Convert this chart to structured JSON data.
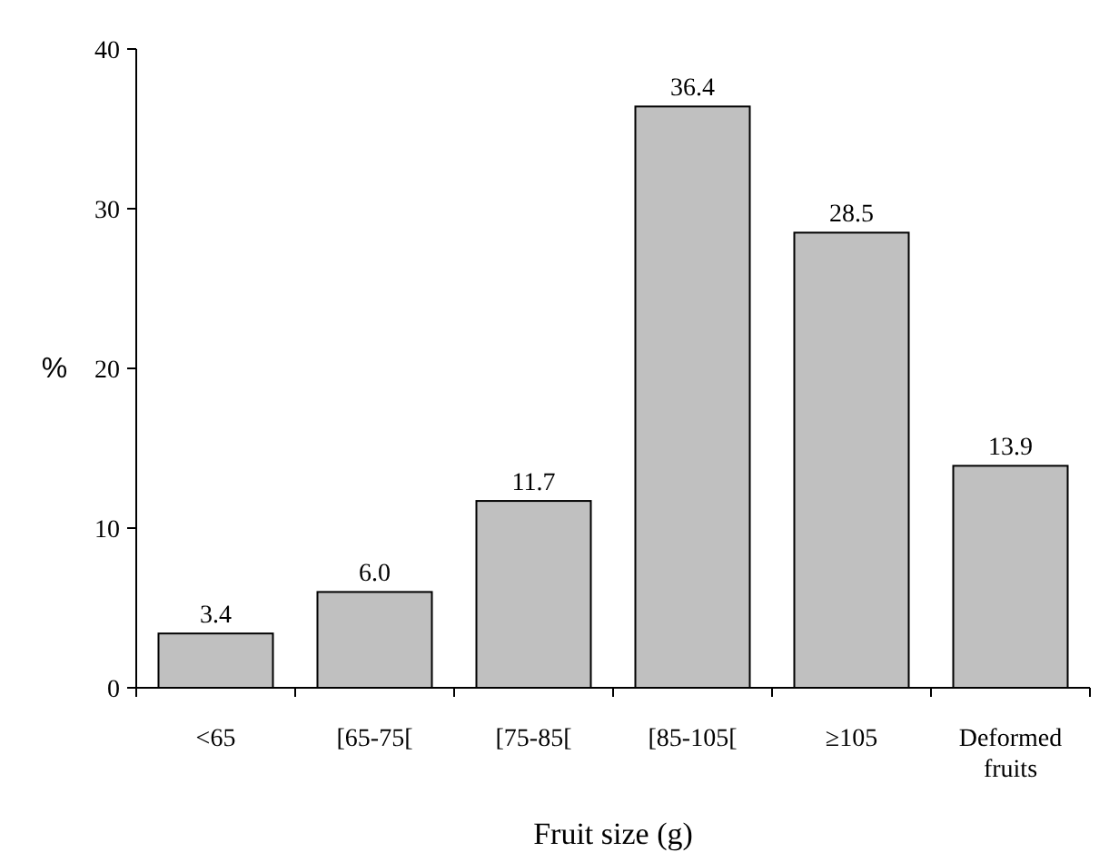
{
  "chart_data": {
    "type": "bar",
    "xlabel": "Fruit size (g)",
    "ylabel": "%",
    "categories": [
      "<65",
      "[65-75[",
      "[75-85[",
      "[85-105[",
      "≥105",
      "Deformed fruits"
    ],
    "values": [
      3.4,
      6.0,
      11.7,
      36.4,
      28.5,
      13.9
    ],
    "value_labels": [
      "3.4",
      "6.0",
      "11.7",
      "36.4",
      "28.5",
      "13.9"
    ],
    "color": "#c0c0c0",
    "ylim": [
      0,
      40
    ],
    "yticks": [
      0,
      10,
      20,
      30,
      40
    ],
    "grid": false
  }
}
